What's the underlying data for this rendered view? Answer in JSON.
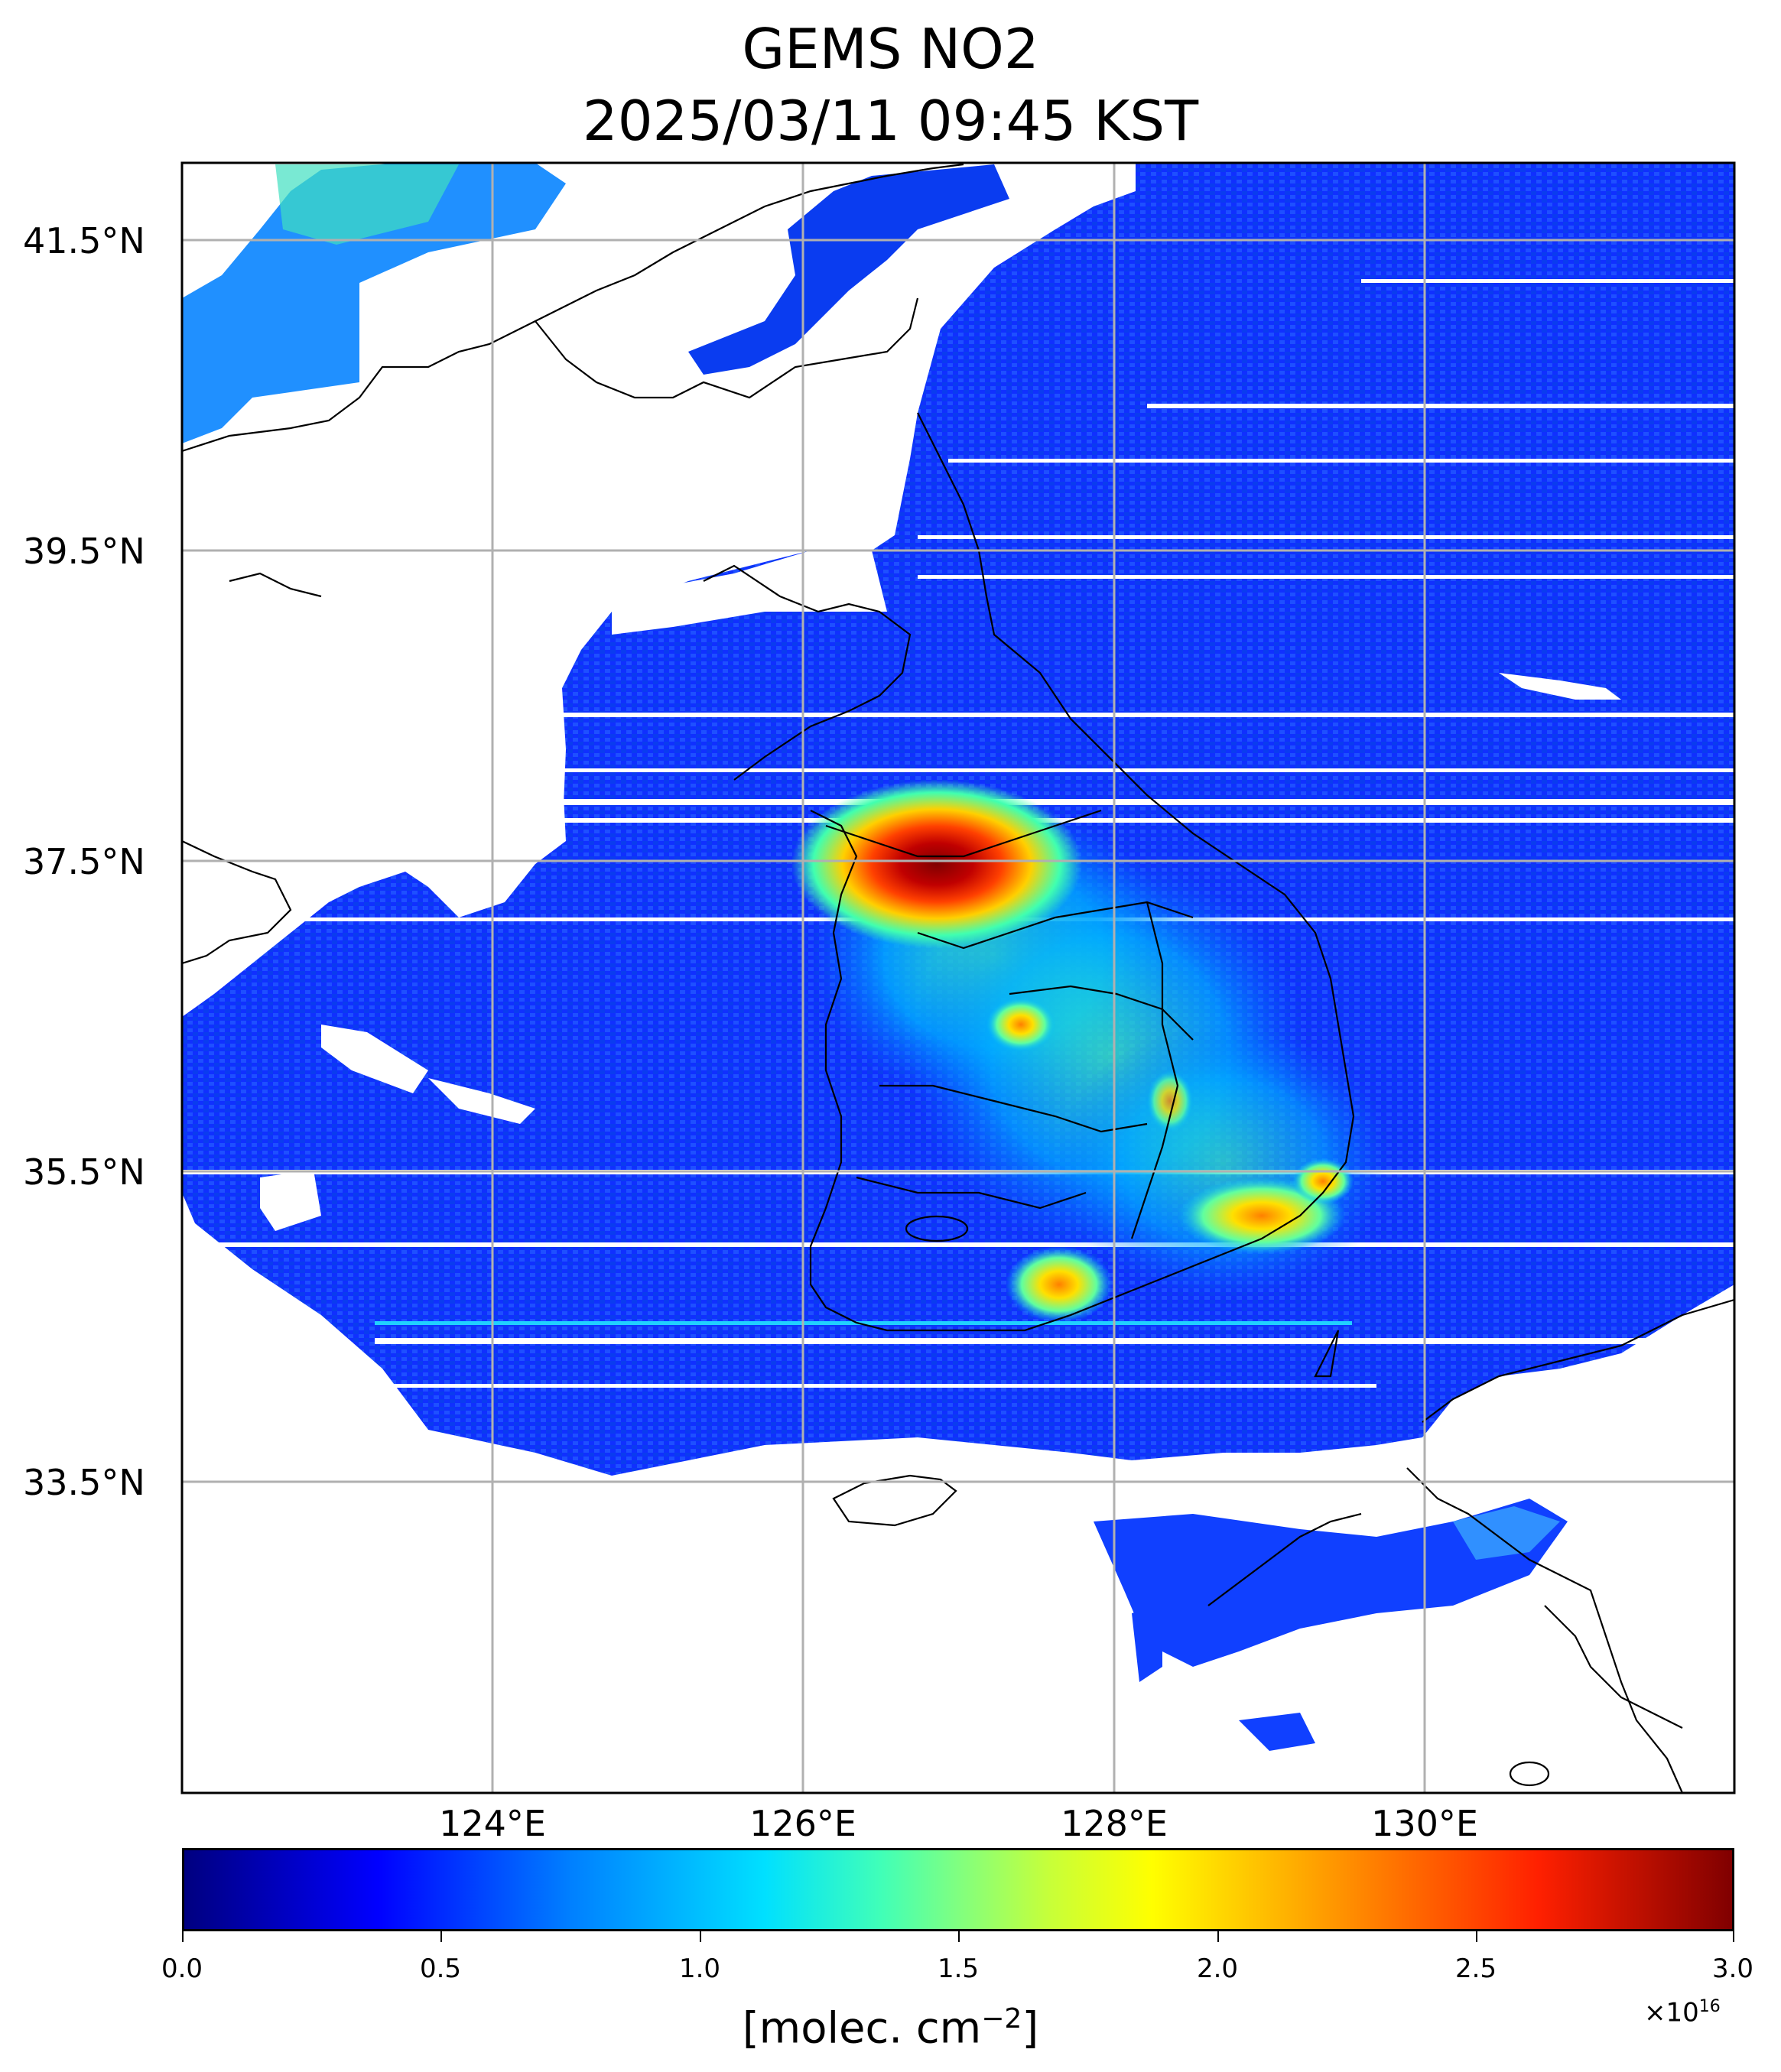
{
  "map": {
    "title_line1": "GEMS NO2",
    "title_line2": "2025/03/11 09:45 KST",
    "lat_labels": [
      "41.5°N",
      "39.5°N",
      "37.5°N",
      "35.5°N",
      "33.5°N"
    ],
    "lon_labels": [
      "124°E",
      "126°E",
      "128°E",
      "130°E"
    ],
    "lat_gridlines_deg": [
      41.5,
      39.5,
      37.5,
      35.5,
      33.5
    ],
    "lon_gridlines_deg": [
      124,
      126,
      128,
      130
    ],
    "extent": {
      "lon_min": 122.0,
      "lon_max": 132.0,
      "lat_min": 31.5,
      "lat_max": 42.0
    },
    "projection": "PlateCarree",
    "colormap": "jet",
    "hotspots": [
      {
        "name": "Seoul metropolitan area",
        "level": "maximum (dark red)"
      },
      {
        "name": "Busan / Ulsan coast",
        "level": "elevated (yellow-orange)"
      },
      {
        "name": "Gwangyang / Yeosu",
        "level": "elevated (yellow-orange)"
      }
    ]
  },
  "colorbar": {
    "ticks": [
      "0.0",
      "0.5",
      "1.0",
      "1.5",
      "2.0",
      "2.5",
      "3.0"
    ],
    "min": 0.0,
    "max": 3.0,
    "exponent_prefix": "×10",
    "exponent_power": "16",
    "unit_text": "[molec. cm",
    "unit_power": "−2",
    "unit_close": "]",
    "colors": [
      "#000080",
      "#0000ff",
      "#0080ff",
      "#00e0ff",
      "#80ff80",
      "#ffff00",
      "#ff9000",
      "#ff2000",
      "#800000"
    ]
  }
}
